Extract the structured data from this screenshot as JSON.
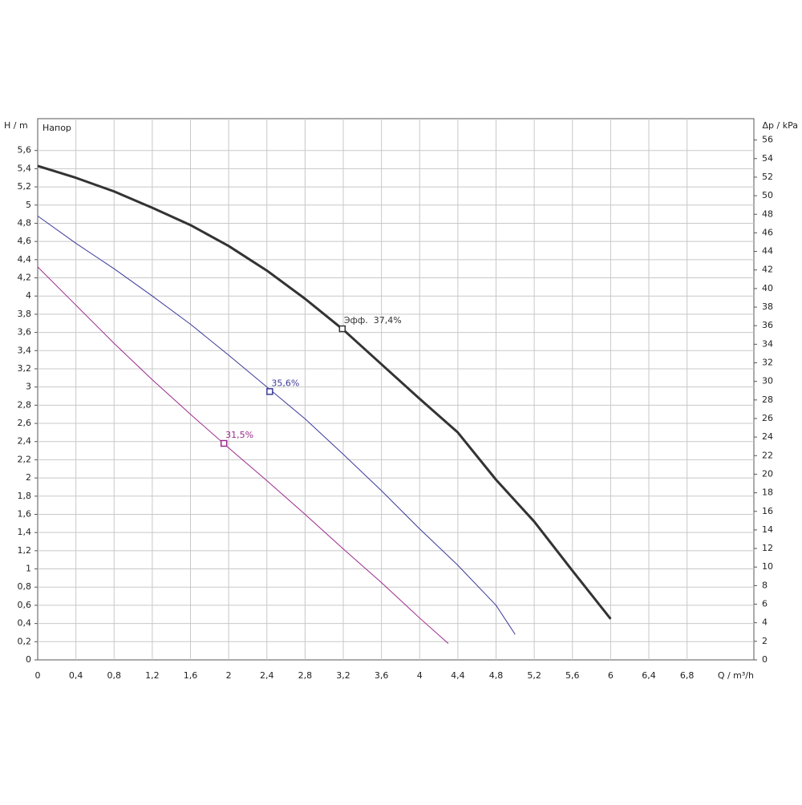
{
  "chart_data": {
    "type": "line",
    "xlabel": "Q / m³/h",
    "ylabel": "H / m",
    "y2label": "Δp / kPa",
    "legend_text": "Напор",
    "xlim": [
      0,
      7.5
    ],
    "ylim": [
      0,
      5.95
    ],
    "y2lim": [
      0,
      58.3
    ],
    "grid": true,
    "xticks": [
      0,
      {
        "value": 0.4,
        "label": "0,4"
      },
      {
        "value": 0.8,
        "label": "0,8"
      },
      {
        "value": 1.2,
        "label": "1,2"
      },
      {
        "value": 1.6,
        "label": "1,6"
      },
      2,
      {
        "value": 2.4,
        "label": "2,4"
      },
      {
        "value": 2.8,
        "label": "2,8"
      },
      {
        "value": 3.2,
        "label": "3,2"
      },
      {
        "value": 3.6,
        "label": "3,6"
      },
      4,
      {
        "value": 4.4,
        "label": "4,4"
      },
      {
        "value": 4.8,
        "label": "4,8"
      },
      {
        "value": 5.2,
        "label": "5,2"
      },
      {
        "value": 5.6,
        "label": "5,6"
      },
      6,
      {
        "value": 6.4,
        "label": "6,4"
      },
      {
        "value": 6.8,
        "label": "6,8"
      }
    ],
    "yticks": [
      0,
      {
        "value": 0.2,
        "label": "0,2"
      },
      {
        "value": 0.4,
        "label": "0,4"
      },
      {
        "value": 0.6,
        "label": "0,6"
      },
      {
        "value": 0.8,
        "label": "0,8"
      },
      1,
      {
        "value": 1.2,
        "label": "1,2"
      },
      {
        "value": 1.4,
        "label": "1,4"
      },
      {
        "value": 1.6,
        "label": "1,6"
      },
      {
        "value": 1.8,
        "label": "1,8"
      },
      2,
      {
        "value": 2.2,
        "label": "2,2"
      },
      {
        "value": 2.4,
        "label": "2,4"
      },
      {
        "value": 2.6,
        "label": "2,6"
      },
      {
        "value": 2.8,
        "label": "2,8"
      },
      3,
      {
        "value": 3.2,
        "label": "3,2"
      },
      {
        "value": 3.4,
        "label": "3,4"
      },
      {
        "value": 3.6,
        "label": "3,6"
      },
      {
        "value": 3.8,
        "label": "3,8"
      },
      4,
      {
        "value": 4.2,
        "label": "4,2"
      },
      {
        "value": 4.4,
        "label": "4,4"
      },
      {
        "value": 4.6,
        "label": "4,6"
      },
      {
        "value": 4.8,
        "label": "4,8"
      },
      5,
      {
        "value": 5.2,
        "label": "5,2"
      },
      {
        "value": 5.4,
        "label": "5,4"
      },
      {
        "value": 5.6,
        "label": "5,6"
      }
    ],
    "y2ticks": [
      0,
      2,
      4,
      6,
      8,
      10,
      12,
      14,
      16,
      18,
      20,
      22,
      24,
      26,
      28,
      30,
      32,
      34,
      36,
      38,
      40,
      42,
      44,
      46,
      48,
      50,
      52,
      54,
      56
    ],
    "series": [
      {
        "color": "#333333",
        "width": 3,
        "x": [
          0,
          0.4,
          0.8,
          1.2,
          1.6,
          2.0,
          2.4,
          2.8,
          3.2,
          3.6,
          4.0,
          4.4,
          4.8,
          5.2,
          5.6,
          6.0
        ],
        "values": [
          5.43,
          5.3,
          5.15,
          4.97,
          4.78,
          4.55,
          4.28,
          3.97,
          3.63,
          3.25,
          2.87,
          2.5,
          1.98,
          1.52,
          0.98,
          0.45
        ]
      },
      {
        "color": "#3a3a9a",
        "width": 1,
        "x": [
          0,
          0.4,
          0.8,
          1.2,
          1.6,
          2.0,
          2.4,
          2.8,
          3.2,
          3.6,
          4.0,
          4.4,
          4.8,
          5.0
        ],
        "values": [
          4.88,
          4.58,
          4.3,
          4.0,
          3.69,
          3.35,
          3.0,
          2.65,
          2.26,
          1.86,
          1.44,
          1.04,
          0.6,
          0.28
        ]
      },
      {
        "color": "#9c2a8c",
        "width": 1,
        "x": [
          0,
          0.4,
          0.8,
          1.2,
          1.6,
          2.0,
          2.4,
          2.8,
          3.2,
          3.6,
          4.0,
          4.3
        ],
        "values": [
          4.32,
          3.9,
          3.48,
          3.08,
          2.7,
          2.33,
          1.97,
          1.6,
          1.22,
          0.85,
          0.46,
          0.18
        ]
      }
    ],
    "markers": [
      {
        "x": 3.19,
        "y": 3.64,
        "label": "Эфф.  37,4%",
        "color": "#333333"
      },
      {
        "x": 2.43,
        "y": 2.95,
        "label": "35,6%",
        "color": "#3a3a9a"
      },
      {
        "x": 1.95,
        "y": 2.38,
        "label": "31,5%",
        "color": "#9c2a8c"
      }
    ]
  }
}
